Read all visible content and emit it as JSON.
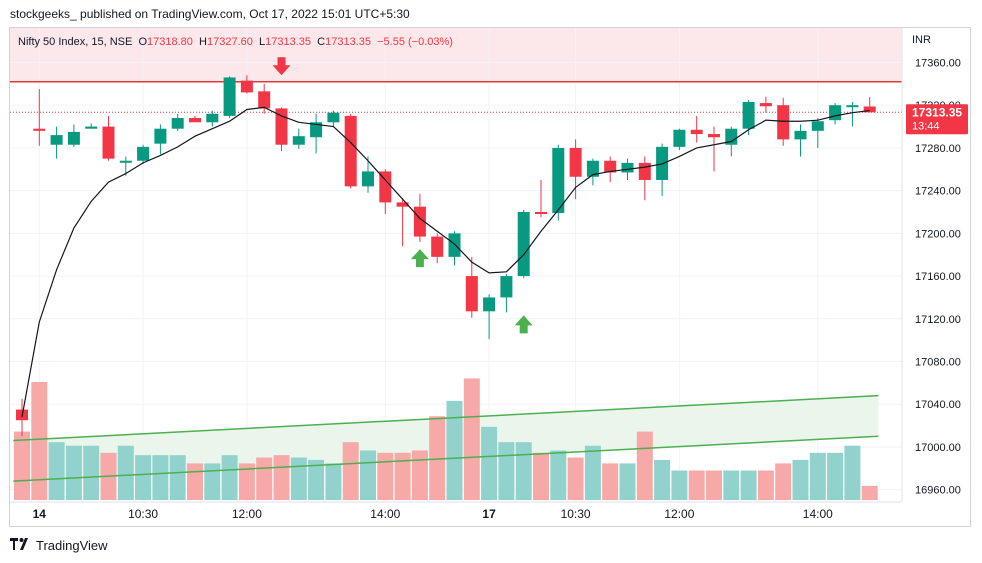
{
  "header": {
    "text": "stockgeeks_ published on TradingView.com, Oct 17, 2022 15:01 UTC+5:30"
  },
  "footer": {
    "brand": "TradingView",
    "logo": "tradingview-logo-icon"
  },
  "legend": {
    "symbol": "Nifty 50 Index, 15, NSE",
    "o_label": "O",
    "o": "17318.80",
    "h_label": "H",
    "h": "17327.60",
    "l_label": "L",
    "l": "17313.35",
    "c_label": "C",
    "c": "17313.35",
    "change": "−5.55 (−0.03%)"
  },
  "currency": "INR",
  "colors": {
    "up": "#089981",
    "down": "#f23645",
    "up_volume": "#92d2cc",
    "down_volume": "#f7a9a7",
    "resistance": "#e53935",
    "channel": "#4caf50",
    "sma": "#131722",
    "resistance_zone": "#fce8ea",
    "channel_fill": "#e8f5e9"
  },
  "price_tag": {
    "value": "17313.35",
    "countdown": "13:44"
  },
  "chart_data": {
    "type": "candlestick",
    "ylim": [
      16955,
      17382
    ],
    "y_ticks": [
      17360,
      17320,
      17280,
      17240,
      17200,
      17160,
      17120,
      17080,
      17040,
      17000,
      16960
    ],
    "y_tick_labels": [
      "17360.00",
      "17320.00",
      "17280.00",
      "17240.00",
      "17200.00",
      "17160.00",
      "17120.00",
      "17080.00",
      "17040.00",
      "17000.00",
      "16960.00"
    ],
    "x_ticks": [
      {
        "index": 1,
        "label": "14"
      },
      {
        "index": 7,
        "label": "10:30"
      },
      {
        "index": 13,
        "label": "12:00"
      },
      {
        "index": 21,
        "label": "14:00"
      },
      {
        "index": 27,
        "label": "17"
      },
      {
        "index": 32,
        "label": "10:30"
      },
      {
        "index": 38,
        "label": "12:00"
      },
      {
        "index": 46,
        "label": "14:00"
      }
    ],
    "candles": [
      [
        17035,
        17045,
        17010,
        17025,
        0.58
      ],
      [
        17298,
        17335,
        17282,
        17296,
        1.0
      ],
      [
        17283,
        17300,
        17270,
        17292,
        0.49
      ],
      [
        17283,
        17302,
        17281,
        17295,
        0.46
      ],
      [
        17298,
        17303,
        17298,
        17300,
        0.46
      ],
      [
        17300,
        17310,
        17268,
        17270,
        0.4
      ],
      [
        17268,
        17272,
        17254,
        17268,
        0.46
      ],
      [
        17268,
        17283,
        17265,
        17281,
        0.38
      ],
      [
        17284,
        17302,
        17274,
        17298,
        0.38
      ],
      [
        17298,
        17312,
        17296,
        17308,
        0.38
      ],
      [
        17308,
        17310,
        17304,
        17304,
        0.31
      ],
      [
        17304,
        17315,
        17300,
        17312,
        0.31
      ],
      [
        17310,
        17347,
        17308,
        17346,
        0.38
      ],
      [
        17343,
        17348,
        17331,
        17332,
        0.31
      ],
      [
        17333,
        17340,
        17312,
        17317,
        0.36
      ],
      [
        17317,
        17318,
        17277,
        17283,
        0.38
      ],
      [
        17283,
        17298,
        17279,
        17291,
        0.36
      ],
      [
        17290,
        17312,
        17275,
        17304,
        0.34
      ],
      [
        17304,
        17315,
        17300,
        17313,
        0.31
      ],
      [
        17310,
        17312,
        17242,
        17244,
        0.49
      ],
      [
        17244,
        17272,
        17238,
        17258,
        0.42
      ],
      [
        17258,
        17260,
        17218,
        17229,
        0.4
      ],
      [
        17229,
        17233,
        17188,
        17225,
        0.4
      ],
      [
        17225,
        17237,
        17192,
        17197,
        0.42
      ],
      [
        17197,
        17200,
        17172,
        17178,
        0.71
      ],
      [
        17178,
        17202,
        17170,
        17200,
        0.84
      ],
      [
        17160,
        17178,
        17121,
        17127,
        1.03
      ],
      [
        17127,
        17143,
        17101,
        17140,
        0.62
      ],
      [
        17140,
        17162,
        17126,
        17160,
        0.49
      ],
      [
        17160,
        17222,
        17158,
        17220,
        0.49
      ],
      [
        17220,
        17250,
        17215,
        17219,
        0.4
      ],
      [
        17219,
        17283,
        17212,
        17280,
        0.42
      ],
      [
        17280,
        17288,
        17232,
        17253,
        0.36
      ],
      [
        17253,
        17270,
        17245,
        17268,
        0.46
      ],
      [
        17268,
        17272,
        17248,
        17257,
        0.31
      ],
      [
        17257,
        17270,
        17250,
        17266,
        0.31
      ],
      [
        17266,
        17272,
        17231,
        17250,
        0.58
      ],
      [
        17250,
        17284,
        17235,
        17281,
        0.34
      ],
      [
        17281,
        17298,
        17278,
        17297,
        0.25
      ],
      [
        17297,
        17310,
        17285,
        17293,
        0.25
      ],
      [
        17293,
        17300,
        17258,
        17290,
        0.25
      ],
      [
        17283,
        17300,
        17272,
        17298,
        0.25
      ],
      [
        17298,
        17325,
        17292,
        17323,
        0.25
      ],
      [
        17322,
        17328,
        17313,
        17319,
        0.25
      ],
      [
        17320,
        17327,
        17282,
        17288,
        0.31
      ],
      [
        17288,
        17302,
        17272,
        17296,
        0.34
      ],
      [
        17296,
        17308,
        17280,
        17305,
        0.4
      ],
      [
        17306,
        17322,
        17302,
        17320,
        0.4
      ],
      [
        17320,
        17323,
        17300,
        17320,
        0.46
      ],
      [
        17318.8,
        17327.6,
        17313.35,
        17313.35,
        0.12
      ]
    ],
    "sma": [
      17028,
      17117,
      17166,
      17205,
      17230,
      17248,
      17256,
      17266,
      17273,
      17281,
      17291,
      17298,
      17305,
      17316,
      17318,
      17310,
      17304,
      17302,
      17300,
      17285,
      17268,
      17250,
      17232,
      17214,
      17202,
      17190,
      17173,
      17163,
      17164,
      17180,
      17202,
      17222,
      17243,
      17255,
      17258,
      17260,
      17262,
      17265,
      17272,
      17280,
      17283,
      17286,
      17297,
      17306,
      17305,
      17305,
      17306,
      17310,
      17313,
      17315
    ],
    "resistance_level": 17342,
    "resistance_zone": [
      17342,
      17382
    ],
    "channel": {
      "upper": [
        [
          -0.5,
          17006
        ],
        [
          49.5,
          17048
        ]
      ],
      "lower": [
        [
          -0.5,
          16968
        ],
        [
          49.5,
          17010
        ]
      ]
    },
    "signals": [
      {
        "index": 15,
        "type": "sell",
        "price": 17348
      },
      {
        "index": 23,
        "type": "buy",
        "price": 17188
      },
      {
        "index": 29,
        "type": "buy",
        "price": 17126
      }
    ]
  }
}
